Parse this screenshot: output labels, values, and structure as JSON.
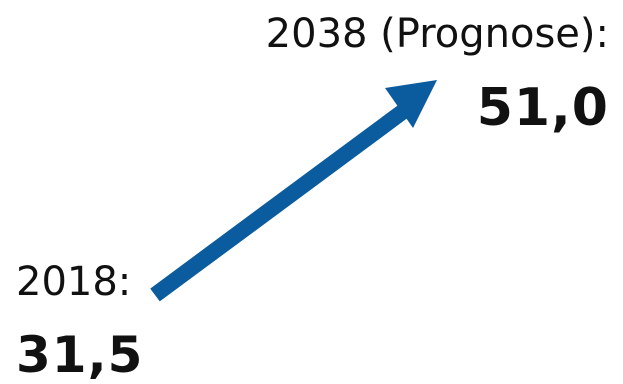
{
  "start": {
    "label": "2018:",
    "value": "31,5"
  },
  "end": {
    "label": "2038 (Prognose):",
    "value": "51,0"
  },
  "arrow": {
    "icon": "arrow-up-right-icon",
    "color": "#0a5c9e"
  }
}
